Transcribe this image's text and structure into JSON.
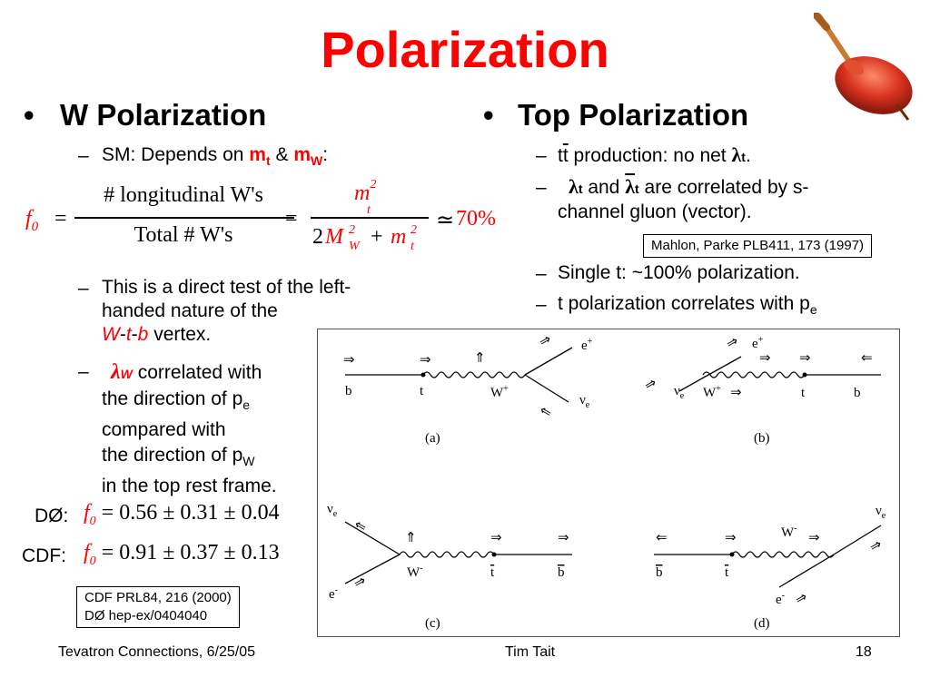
{
  "title": "Polarization",
  "left": {
    "heading": "W Polarization",
    "sm_prefix": "SM: Depends on",
    "mt": "m",
    "t_sub": "t",
    "amp": "&",
    "mw": "m",
    "w_sub": "W",
    "colon": ":",
    "formula": {
      "f": "f",
      "zero": "0",
      "eq": "=",
      "num": "# longitudinal W's",
      "den": "Total # W's",
      "m": "m",
      "two": "2",
      "M": "M",
      "W": "W",
      "t": "t",
      "plus": "+",
      "approx": "≃",
      "result": "70%"
    },
    "bullet1_lines": [
      "This is a direct test of the left-",
      "handed nature of the"
    ],
    "vertex": {
      "W": "W",
      "t": "t",
      "b": "b",
      "dash": "-",
      "suffix": " vertex."
    },
    "lambda": "λ",
    "lambda_sub": "W",
    "bullet2_first": "correlated with",
    "bullet2_dir": "the direction of p",
    "e_sub": "e",
    "bullet2_compared": "compared with",
    "bullet2_dir_w": "the direction of p",
    "W_sub2": "W",
    "bullet2_frame": "in the top rest frame.",
    "d0_label": "DØ:",
    "d0_values": "0.56 ± 0.31 ± 0.04",
    "cdf_label": "CDF:",
    "cdf_values": "0.91 ± 0.37 ± 0.13",
    "refs": [
      "CDF PRL84, 216 (2000)",
      "DØ hep-ex/0404040"
    ]
  },
  "right": {
    "heading": "Top Polarization",
    "item1": {
      "t": "t",
      "tbar": "t",
      "text": " production: no net ",
      "lambda": "λ",
      "sub": "t",
      "end": "."
    },
    "item2": {
      "lambda": "λ",
      "sub": "t",
      "and": "and",
      "text_a": "are correlated by s-",
      "text_b": "channel gluon (vector)."
    },
    "ref": "Mahlon, Parke PLB411, 173 (1997)",
    "item3": "Single t: ~100% polarization.",
    "item4": "t polarization correlates with p",
    "item4_sub": "e"
  },
  "diagram": {
    "labels": {
      "b": "b",
      "t": "t",
      "Wp": "W",
      "plus": "+",
      "minus": "-",
      "ep": "e",
      "nue": "ν",
      "e_sub": "e",
      "tbar": "t",
      "bbar": "b",
      "Wm": "W",
      "em": "e",
      "a": "(a)",
      "bb": "(b)",
      "c": "(c)",
      "d": "(d)"
    }
  },
  "footer": {
    "left": "Tevatron Connections, 6/25/05",
    "center": "Tim Tait",
    "page": "18"
  },
  "colors": {
    "title": "#ff0000",
    "accent_red": "#ff0000",
    "accent_blue": "#0000cc",
    "top_icon": "#cc2a1f"
  },
  "icons": {
    "spinning_top": "spinning-top-icon"
  }
}
